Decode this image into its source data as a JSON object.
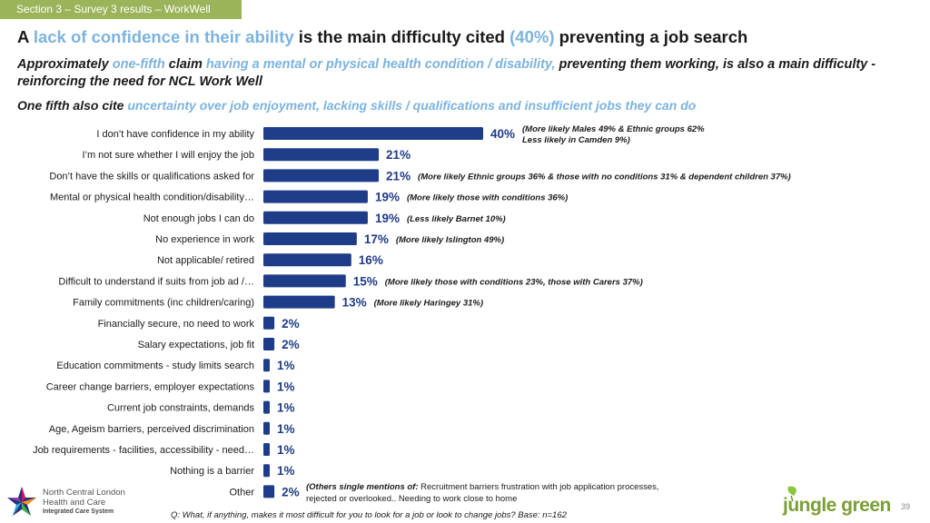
{
  "section_tab": "Section 3 – Survey 3 results – WorkWell",
  "headline": {
    "p1": "A ",
    "p2": "lack of confidence in their ability",
    "p3": " is the main difficulty cited ",
    "p4": "(40%)",
    "p5": " preventing a job search"
  },
  "subhead1": {
    "p1": "Approximately ",
    "p2": "one-fifth",
    "p3": " claim ",
    "p4": "having a mental or physical health condition / disability,",
    "p5": " preventing them working, is also a main difficulty - reinforcing the need for NCL Work Well"
  },
  "subhead2": {
    "p1": "One fifth also cite ",
    "p2": "uncertainty over job enjoyment, lacking skills / qualifications and insufficient jobs they can do"
  },
  "colors": {
    "bar": "#1f3c88",
    "tab": "#9bb45a",
    "highlight": "#7bb3e0"
  },
  "chart_data": {
    "type": "bar",
    "orientation": "horizontal",
    "unit": "%",
    "categories": [
      "I don’t have confidence in my ability",
      "I’m not sure whether I will enjoy the job",
      "Don’t have the skills or qualifications asked for",
      "Mental or physical health condition/disability…",
      "Not enough jobs I can do",
      "No experience in work",
      "Not applicable/ retired",
      "Difficult to understand if suits from job ad /…",
      "Family commitments (inc children/caring)",
      "Financially secure, no need to work",
      "Salary expectations, job fit",
      "Education commitments - study limits search",
      "Career change barriers, employer expectations",
      "Current job constraints, demands",
      "Age, Ageism barriers, perceived discrimination",
      "Job requirements - facilities, accessibility - need…",
      "Nothing is a barrier",
      "Other"
    ],
    "values": [
      40,
      21,
      21,
      19,
      19,
      17,
      16,
      15,
      13,
      2,
      2,
      1,
      1,
      1,
      1,
      1,
      1,
      2
    ],
    "value_labels": [
      "40%",
      "21%",
      "21%",
      "19%",
      "19%",
      "17%",
      "16%",
      "15%",
      "13%",
      "2%",
      "2%",
      "1%",
      "1%",
      "1%",
      "1%",
      "1%",
      "1%",
      "2%"
    ],
    "annotations": [
      [
        "(More likely Males 49% & Ethnic groups 62%",
        "Less likely in Camden 9%)"
      ],
      [],
      [
        "(More likely Ethnic groups 36% & those with no conditions 31% & dependent children 37%)"
      ],
      [
        "(More likely those with conditions 36%)"
      ],
      [
        "(Less likely Barnet 10%)"
      ],
      [
        "(More likely Islington 49%)"
      ],
      [],
      [
        "(More likely those with conditions 23%, those with Carers 37%)"
      ],
      [
        "(More likely Haringey 31%)"
      ],
      [],
      [],
      [],
      [],
      [],
      [],
      [],
      [],
      []
    ],
    "xlim": [
      0,
      40
    ]
  },
  "others_note": {
    "bold": "(Others single mentions of:",
    "text": " Recruitment barriers frustration with job application processes, rejected or overlooked..  Needing to work close to home"
  },
  "question": "Q: What, if anything, makes it most difficult for you to look for a job or look to change jobs? Base: n=162",
  "logos": {
    "ncl_line1": "North Central London",
    "ncl_line2": "Health and Care",
    "ncl_line3": "Integrated Care System",
    "jungle_green": "jungle green"
  },
  "page_number": "39"
}
